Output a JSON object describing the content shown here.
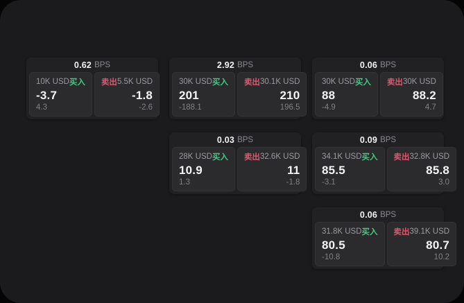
{
  "labels": {
    "bps_unit": "BPS",
    "buy": "买入",
    "sell": "卖出"
  },
  "colors": {
    "buy_green": "#46c77e",
    "sell_red": "#e0566b",
    "panel_bg": "#1b1b1d",
    "card_bg": "#212124",
    "tile_bg": "#2b2b2d"
  },
  "cards": [
    {
      "col": 1,
      "row": 1,
      "bps": "0.62",
      "buy": {
        "amount": "10K USD",
        "price": "-3.7",
        "delta": "4.3"
      },
      "sell": {
        "amount": "5.5K USD",
        "price": "-1.8",
        "delta": "-2.6"
      }
    },
    {
      "col": 2,
      "row": 1,
      "bps": "2.92",
      "buy": {
        "amount": "30K USD",
        "price": "201",
        "delta": "-188.1"
      },
      "sell": {
        "amount": "30.1K USD",
        "price": "210",
        "delta": "196.5"
      }
    },
    {
      "col": 3,
      "row": 1,
      "bps": "0.06",
      "buy": {
        "amount": "30K USD",
        "price": "88",
        "delta": "-4.9"
      },
      "sell": {
        "amount": "30K USD",
        "price": "88.2",
        "delta": "4.7"
      }
    },
    {
      "col": 2,
      "row": 2,
      "bps": "0.03",
      "buy": {
        "amount": "28K USD",
        "price": "10.9",
        "delta": "1.3"
      },
      "sell": {
        "amount": "32.6K USD",
        "price": "11",
        "delta": "-1.8"
      }
    },
    {
      "col": 3,
      "row": 2,
      "bps": "0.09",
      "buy": {
        "amount": "34.1K USD",
        "price": "85.5",
        "delta": "-3.1"
      },
      "sell": {
        "amount": "32.8K USD",
        "price": "85.8",
        "delta": "3.0"
      }
    },
    {
      "col": 3,
      "row": 3,
      "bps": "0.06",
      "buy": {
        "amount": "31.8K USD",
        "price": "80.5",
        "delta": "-10.8"
      },
      "sell": {
        "amount": "39.1K USD",
        "price": "80.7",
        "delta": "10.2"
      }
    }
  ]
}
